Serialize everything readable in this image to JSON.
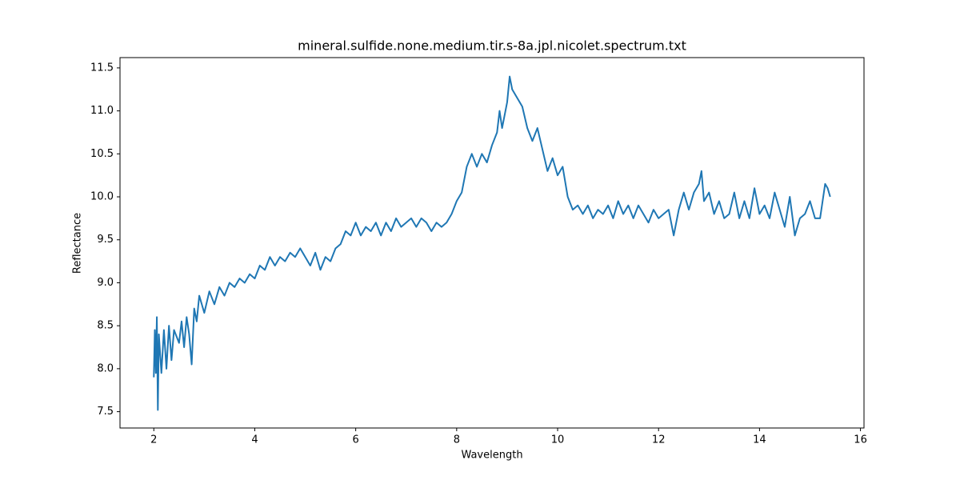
{
  "chart_data": {
    "type": "line",
    "title": "mineral.sulfide.none.medium.tir.s-8a.jpl.nicolet.spectrum.txt",
    "x_label": "Wavelength",
    "y_label": "Reflectance",
    "color": "#1f77b4",
    "x": [
      2.0,
      2.02,
      2.04,
      2.06,
      2.08,
      2.1,
      2.15,
      2.2,
      2.25,
      2.3,
      2.35,
      2.4,
      2.5,
      2.55,
      2.6,
      2.65,
      2.7,
      2.75,
      2.8,
      2.85,
      2.9,
      3.0,
      3.1,
      3.2,
      3.3,
      3.4,
      3.5,
      3.6,
      3.7,
      3.8,
      3.9,
      4.0,
      4.1,
      4.2,
      4.3,
      4.4,
      4.5,
      4.6,
      4.7,
      4.8,
      4.9,
      5.0,
      5.1,
      5.2,
      5.3,
      5.4,
      5.5,
      5.6,
      5.7,
      5.8,
      5.9,
      6.0,
      6.1,
      6.2,
      6.3,
      6.4,
      6.5,
      6.6,
      6.7,
      6.8,
      6.9,
      7.0,
      7.1,
      7.2,
      7.3,
      7.4,
      7.5,
      7.6,
      7.7,
      7.8,
      7.9,
      8.0,
      8.1,
      8.2,
      8.3,
      8.4,
      8.5,
      8.6,
      8.7,
      8.8,
      8.85,
      8.9,
      9.0,
      9.05,
      9.1,
      9.2,
      9.3,
      9.4,
      9.5,
      9.6,
      9.7,
      9.8,
      9.9,
      10.0,
      10.1,
      10.2,
      10.3,
      10.4,
      10.5,
      10.6,
      10.7,
      10.8,
      10.9,
      11.0,
      11.1,
      11.2,
      11.3,
      11.4,
      11.5,
      11.6,
      11.7,
      11.8,
      11.9,
      12.0,
      12.1,
      12.2,
      12.3,
      12.4,
      12.5,
      12.6,
      12.7,
      12.8,
      12.85,
      12.9,
      13.0,
      13.1,
      13.2,
      13.3,
      13.4,
      13.5,
      13.6,
      13.7,
      13.8,
      13.9,
      14.0,
      14.1,
      14.2,
      14.3,
      14.4,
      14.5,
      14.6,
      14.7,
      14.8,
      14.9,
      15.0,
      15.1,
      15.2,
      15.3,
      15.35,
      15.4
    ],
    "values": [
      7.9,
      8.45,
      7.95,
      8.6,
      7.52,
      8.4,
      7.95,
      8.45,
      8.0,
      8.5,
      8.1,
      8.45,
      8.3,
      8.55,
      8.25,
      8.6,
      8.4,
      8.05,
      8.7,
      8.55,
      8.85,
      8.65,
      8.9,
      8.75,
      8.95,
      8.85,
      9.0,
      8.95,
      9.05,
      9.0,
      9.1,
      9.05,
      9.2,
      9.15,
      9.3,
      9.2,
      9.3,
      9.25,
      9.35,
      9.3,
      9.4,
      9.3,
      9.2,
      9.35,
      9.15,
      9.3,
      9.25,
      9.4,
      9.45,
      9.6,
      9.55,
      9.7,
      9.55,
      9.65,
      9.6,
      9.7,
      9.55,
      9.7,
      9.6,
      9.75,
      9.65,
      9.7,
      9.75,
      9.65,
      9.75,
      9.7,
      9.6,
      9.7,
      9.65,
      9.7,
      9.8,
      9.95,
      10.05,
      10.35,
      10.5,
      10.35,
      10.5,
      10.4,
      10.6,
      10.75,
      11.0,
      10.8,
      11.1,
      11.4,
      11.25,
      11.15,
      11.05,
      10.8,
      10.65,
      10.8,
      10.55,
      10.3,
      10.45,
      10.25,
      10.35,
      10.0,
      9.85,
      9.9,
      9.8,
      9.9,
      9.75,
      9.85,
      9.8,
      9.9,
      9.75,
      9.95,
      9.8,
      9.9,
      9.75,
      9.9,
      9.8,
      9.7,
      9.85,
      9.75,
      9.8,
      9.85,
      9.55,
      9.85,
      10.05,
      9.85,
      10.05,
      10.15,
      10.3,
      9.95,
      10.05,
      9.8,
      9.95,
      9.75,
      9.8,
      10.05,
      9.75,
      9.95,
      9.75,
      10.1,
      9.8,
      9.9,
      9.75,
      10.05,
      9.85,
      9.65,
      10.0,
      9.55,
      9.75,
      9.8,
      9.95,
      9.75,
      9.75,
      10.15,
      10.1,
      10.0
    ],
    "xlim": [
      1.33,
      16.07
    ],
    "ylim": [
      7.31,
      11.62
    ],
    "xticks": [
      2,
      4,
      6,
      8,
      10,
      12,
      14,
      16
    ],
    "yticks": [
      7.5,
      {
        "value": 8,
        "label": "8.0"
      },
      8.5,
      {
        "value": 9,
        "label": "9.0"
      },
      9.5,
      {
        "value": 10,
        "label": "10.0"
      },
      10.5,
      {
        "value": 11,
        "label": "11.0"
      },
      11.5
    ]
  }
}
